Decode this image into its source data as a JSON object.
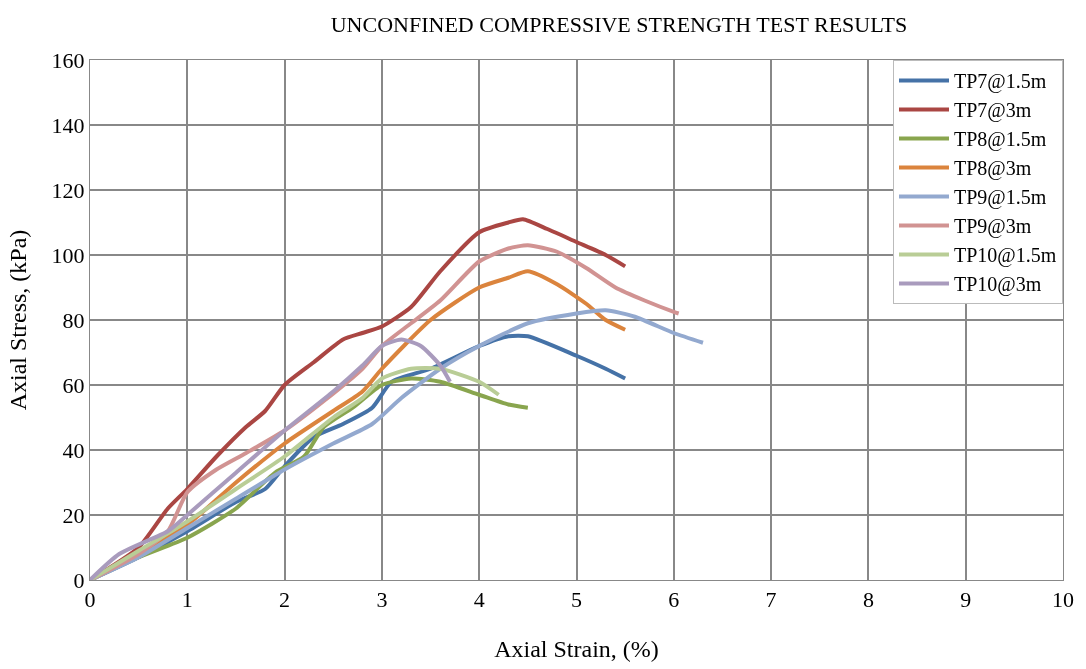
{
  "chart_data": {
    "type": "line",
    "title": "UNCONFINED COMPRESSIVE STRENGTH TEST RESULTS",
    "xlabel": "Axial Strain, (%)",
    "ylabel": "Axial Stress, (kPa)",
    "xlim": [
      0,
      10
    ],
    "xticks": [
      0,
      1,
      2,
      3,
      4,
      5,
      6,
      7,
      8,
      9,
      10
    ],
    "ylim": [
      0,
      160
    ],
    "yticks": [
      0,
      20,
      40,
      60,
      80,
      100,
      120,
      140,
      160
    ],
    "grid": true,
    "legend": "top right",
    "marker": "none",
    "line_style": "solid",
    "series": [
      {
        "name": "TP7@1.5m",
        "color": "#4572a7",
        "x": [
          0,
          0.5,
          1,
          1.5,
          1.8,
          2,
          2.3,
          2.6,
          2.9,
          3.1,
          3.5,
          4,
          4.3,
          4.5,
          5,
          5.3,
          5.5
        ],
        "values": [
          0,
          7,
          15,
          24,
          28,
          35,
          44,
          48,
          53,
          61,
          65,
          72,
          75,
          75,
          69,
          65,
          62
        ]
      },
      {
        "name": "TP7@3m",
        "color": "#aa4643",
        "x": [
          0,
          0.5,
          0.8,
          1,
          1.3,
          1.6,
          1.8,
          2,
          2.3,
          2.6,
          2.8,
          3,
          3.3,
          3.6,
          4,
          4.3,
          4.45,
          4.7,
          5,
          5.3,
          5.5
        ],
        "values": [
          0,
          10,
          22,
          28,
          38,
          47,
          52,
          60,
          67,
          74,
          76,
          78,
          84,
          95,
          107,
          110,
          111,
          108,
          104,
          100,
          96.5
        ]
      },
      {
        "name": "TP8@1.5m",
        "color": "#89a54e",
        "x": [
          0,
          0.5,
          1,
          1.5,
          1.9,
          2.2,
          2.4,
          2.7,
          3,
          3.3,
          3.6,
          4,
          4.3,
          4.5
        ],
        "values": [
          0,
          7,
          13,
          22,
          33,
          38,
          47,
          53,
          60,
          62,
          61,
          57,
          54,
          53
        ]
      },
      {
        "name": "TP8@3m",
        "color": "#db843d",
        "x": [
          0,
          0.5,
          1,
          1.5,
          2,
          2.5,
          2.8,
          3,
          3.5,
          4,
          4.3,
          4.5,
          4.8,
          5.1,
          5.3,
          5.5
        ],
        "values": [
          0,
          8,
          17,
          30,
          42,
          52,
          58,
          65,
          80,
          90,
          93,
          95,
          91,
          85,
          80,
          77
        ]
      },
      {
        "name": "TP9@1.5m",
        "color": "#93a9cf",
        "x": [
          0,
          0.5,
          1,
          1.5,
          2,
          2.5,
          2.9,
          3.2,
          3.6,
          4,
          4.5,
          5,
          5.3,
          5.6,
          6,
          6.3
        ],
        "values": [
          0,
          7,
          16,
          25,
          34,
          42,
          48,
          56,
          65,
          72,
          79,
          82,
          83,
          81,
          76,
          73
        ]
      },
      {
        "name": "TP9@3m",
        "color": "#d19392",
        "x": [
          0,
          0.5,
          0.8,
          1,
          1.3,
          1.6,
          2,
          2.4,
          2.8,
          3,
          3.3,
          3.6,
          4,
          4.3,
          4.5,
          4.8,
          5.1,
          5.4,
          5.7,
          6,
          6.05
        ],
        "values": [
          0,
          8,
          15,
          27,
          34,
          39,
          46,
          55,
          65,
          72,
          79,
          86,
          98,
          102,
          103,
          101,
          96,
          90,
          86,
          82.5,
          82
        ]
      },
      {
        "name": "TP10@1.5m",
        "color": "#b9cd96",
        "x": [
          0,
          0.5,
          1,
          1.5,
          2,
          2.5,
          2.8,
          3,
          3.3,
          3.6,
          4,
          4.2
        ],
        "values": [
          0,
          9,
          18,
          28,
          38,
          50,
          56,
          62,
          65,
          65,
          61,
          57
        ]
      },
      {
        "name": "TP10@3m",
        "color": "#a99bbd",
        "x": [
          0,
          0.3,
          0.8,
          1,
          1.5,
          2,
          2.5,
          2.8,
          3,
          3.2,
          3.4,
          3.6,
          3.7
        ],
        "values": [
          0,
          8,
          15,
          20,
          33,
          46,
          58,
          66,
          72,
          74,
          72,
          66,
          61
        ]
      }
    ]
  }
}
